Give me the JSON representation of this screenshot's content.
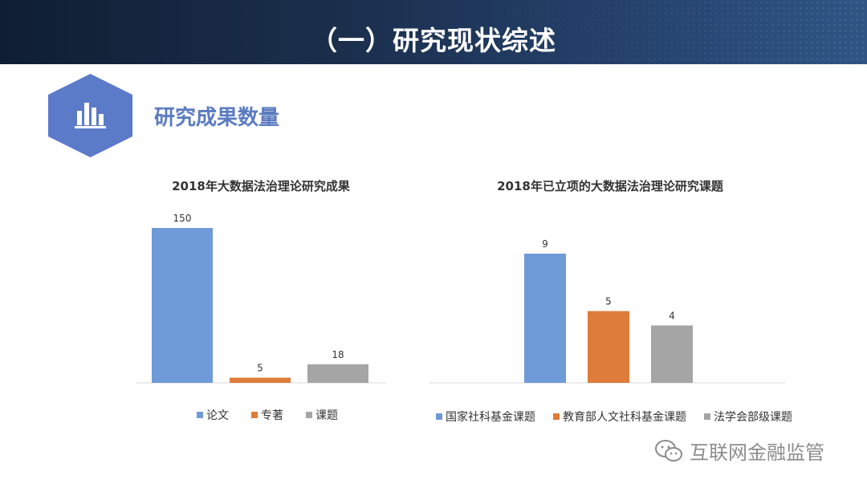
{
  "header": {
    "title": "（一）研究现状综述"
  },
  "section": {
    "title": "研究成果数量",
    "icon": "bar-chart-icon"
  },
  "colors": {
    "blue": "#6f9ad8",
    "orange": "#de7c39",
    "gray": "#a5a5a5",
    "hex": "#5b7bc9"
  },
  "chart_data": [
    {
      "type": "bar",
      "title": "2018年大数据法治理论研究成果",
      "categories": [
        "论文",
        "专著",
        "课题"
      ],
      "values": [
        150,
        5,
        18
      ],
      "colors": [
        "#6f9ad8",
        "#de7c39",
        "#a5a5a5"
      ],
      "ylim": [
        0,
        150
      ],
      "xlabel": "",
      "ylabel": "",
      "legend": "bottom",
      "grid": false
    },
    {
      "type": "bar",
      "title": "2018年已立项的大数据法治理论研究课题",
      "categories": [
        "国家社科基金课题",
        "教育部人文社科基金课题",
        "法学会部级课题"
      ],
      "values": [
        9,
        5,
        4
      ],
      "colors": [
        "#6f9ad8",
        "#de7c39",
        "#a5a5a5"
      ],
      "ylim": [
        0,
        9
      ],
      "xlabel": "",
      "ylabel": "",
      "legend": "bottom",
      "grid": false
    }
  ],
  "watermark": {
    "text": "互联网金融监管",
    "icon": "wechat-icon"
  }
}
